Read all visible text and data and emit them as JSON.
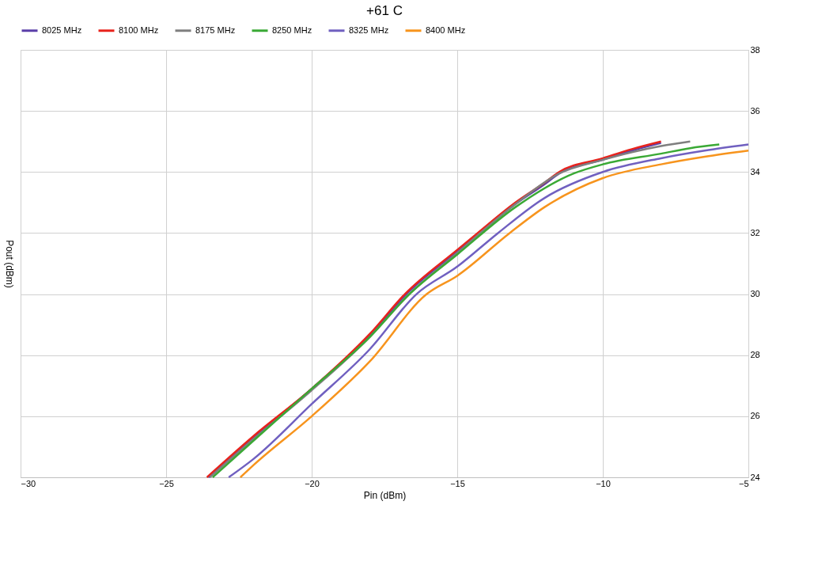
{
  "chart_data": {
    "type": "line",
    "title": "+61 C",
    "xlabel": "Pin (dBm)",
    "ylabel": "Pout (dBm)",
    "xlim": [
      -30,
      -5
    ],
    "xticks": [
      -30,
      -25,
      -20,
      -15,
      -10,
      -5
    ],
    "ylim": [
      24,
      38
    ],
    "yticks": [
      24,
      26,
      28,
      30,
      32,
      34,
      36,
      38
    ],
    "grid": true,
    "legend": "top",
    "marker": "none",
    "line_style": "solid",
    "series": [
      {
        "name": "8025 MHz",
        "color": "#5b3fa8",
        "x": [
          -23.55,
          -22,
          -20,
          -18,
          -16.8,
          -15,
          -14.3,
          -13,
          -12,
          -11.5,
          -10,
          -9,
          -8
        ],
        "values": [
          24,
          25.3,
          26.9,
          28.65,
          29.95,
          31.4,
          31.95,
          32.95,
          33.6,
          33.95,
          34.4,
          34.7,
          34.95
        ]
      },
      {
        "name": "8100 MHz",
        "color": "#e8231c",
        "x": [
          -23.6,
          -22,
          -20,
          -18,
          -16.8,
          -15,
          -14.3,
          -13,
          -12,
          -11.5,
          -10,
          -9,
          -8
        ],
        "values": [
          24,
          25.35,
          26.9,
          28.7,
          30,
          31.45,
          32,
          33,
          33.65,
          34,
          34.45,
          34.75,
          35.0
        ]
      },
      {
        "name": "8175 MHz",
        "color": "#7f7f7f",
        "x": [
          -23.5,
          -22,
          -20,
          -18,
          -16.7,
          -15,
          -13,
          -11.5,
          -10,
          -9,
          -8,
          -7
        ],
        "values": [
          24,
          25.25,
          26.85,
          28.6,
          29.95,
          31.35,
          32.95,
          33.95,
          34.4,
          34.65,
          34.85,
          35.0
        ]
      },
      {
        "name": "8250 MHz",
        "color": "#3aa935",
        "x": [
          -23.4,
          -22,
          -20,
          -18,
          -16.7,
          -15,
          -13,
          -11,
          -10,
          -8,
          -7,
          -6
        ],
        "values": [
          24,
          25.2,
          26.9,
          28.6,
          29.95,
          31.3,
          32.85,
          33.95,
          34.25,
          34.6,
          34.78,
          34.9
        ]
      },
      {
        "name": "8325 MHz",
        "color": "#7060c0",
        "x": [
          -22.85,
          -22,
          -20,
          -18,
          -16.4,
          -15,
          -13.6,
          -12,
          -10,
          -8,
          -6.5,
          -5
        ],
        "values": [
          24,
          24.6,
          26.4,
          28.2,
          30,
          30.9,
          32,
          33.15,
          34.0,
          34.45,
          34.7,
          34.9
        ]
      },
      {
        "name": "8400 MHz",
        "color": "#f7941d",
        "x": [
          -22.45,
          -22,
          -20,
          -18,
          -16.05,
          -15,
          -13.2,
          -12,
          -10,
          -8,
          -6.5,
          -5
        ],
        "values": [
          24,
          24.4,
          26.0,
          27.8,
          30,
          30.6,
          32,
          32.85,
          33.8,
          34.25,
          34.5,
          34.7
        ]
      }
    ]
  }
}
